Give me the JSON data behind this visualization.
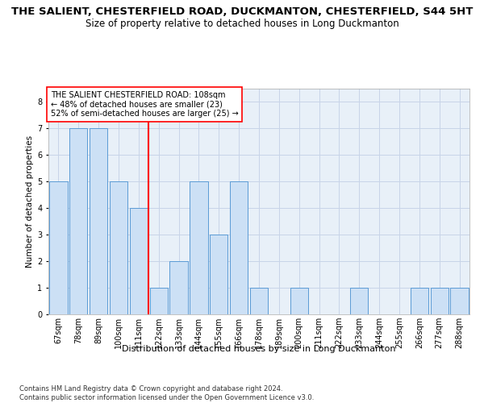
{
  "title": "THE SALIENT, CHESTERFIELD ROAD, DUCKMANTON, CHESTERFIELD, S44 5HT",
  "subtitle": "Size of property relative to detached houses in Long Duckmanton",
  "xlabel": "Distribution of detached houses by size in Long Duckmanton",
  "ylabel": "Number of detached properties",
  "footnote": "Contains HM Land Registry data © Crown copyright and database right 2024.\nContains public sector information licensed under the Open Government Licence v3.0.",
  "categories": [
    "67sqm",
    "78sqm",
    "89sqm",
    "100sqm",
    "111sqm",
    "122sqm",
    "133sqm",
    "144sqm",
    "155sqm",
    "166sqm",
    "178sqm",
    "189sqm",
    "200sqm",
    "211sqm",
    "222sqm",
    "233sqm",
    "244sqm",
    "255sqm",
    "266sqm",
    "277sqm",
    "288sqm"
  ],
  "values": [
    5,
    7,
    7,
    5,
    4,
    1,
    2,
    5,
    3,
    5,
    1,
    0,
    1,
    0,
    0,
    1,
    0,
    0,
    1,
    1,
    1
  ],
  "bar_color": "#cce0f5",
  "bar_edge_color": "#5b9bd5",
  "redline_index": 4,
  "annotation_line1": "THE SALIENT CHESTERFIELD ROAD: 108sqm",
  "annotation_line2": "← 48% of detached houses are smaller (23)",
  "annotation_line3": "52% of semi-detached houses are larger (25) →",
  "ylim": [
    0,
    8.5
  ],
  "yticks": [
    0,
    1,
    2,
    3,
    4,
    5,
    6,
    7,
    8
  ],
  "ax_facecolor": "#e8f0f8",
  "background_color": "#ffffff",
  "grid_color": "#c8d4e8",
  "title_fontsize": 9.5,
  "subtitle_fontsize": 8.5,
  "xlabel_fontsize": 8,
  "ylabel_fontsize": 7.5,
  "tick_fontsize": 7,
  "annotation_fontsize": 7,
  "footnote_fontsize": 6
}
